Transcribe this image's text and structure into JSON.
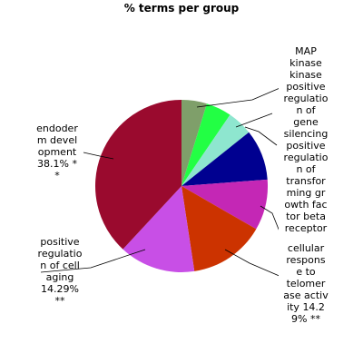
{
  "chart_data": {
    "type": "pie",
    "title": "% terms per group",
    "start_angle_deg": 0,
    "direction": "clockwise",
    "slices": [
      {
        "label": "MAP kinase kinase positive regulation of gene silencing positive regulation of transforming growth factor beta receptor",
        "value": 4.76,
        "color": "#7f9f6a"
      },
      {
        "label": "",
        "value": 4.76,
        "color": "#22ff44"
      },
      {
        "label": "",
        "value": 4.76,
        "color": "#8ee6cf"
      },
      {
        "label": "",
        "value": 9.52,
        "color": "#000090"
      },
      {
        "label": "",
        "value": 9.52,
        "color": "#c427b5"
      },
      {
        "label": "cellular response to telomerase activity 14.29% **",
        "value": 14.29,
        "color": "#cc3300"
      },
      {
        "label": "positive regulation of cell aging 14.29% **",
        "value": 14.29,
        "color": "#c84fe6"
      },
      {
        "label": "endoderm development 38.1% **",
        "value": 38.1,
        "color": "#9a0a2e"
      }
    ],
    "labels": {
      "endoderm": [
        "endoder",
        "m devel",
        "opment",
        "38.1% *",
        "*"
      ],
      "aging": [
        "positive",
        "regulatio",
        "n of cell",
        "aging",
        "14.29%",
        "**"
      ],
      "top_right": [
        "MAP",
        "kinase",
        "kinase",
        "positive",
        "regulatio",
        "n of",
        "gene",
        "silencing",
        "positive",
        "regulatio",
        "n of",
        "transfor",
        "ming gr",
        "owth fac",
        "tor beta",
        "receptor"
      ],
      "bottom_right": [
        "cellular",
        "respons",
        "e to",
        "telomer",
        "ase activ",
        "ity 14.2",
        "9% **"
      ]
    }
  }
}
